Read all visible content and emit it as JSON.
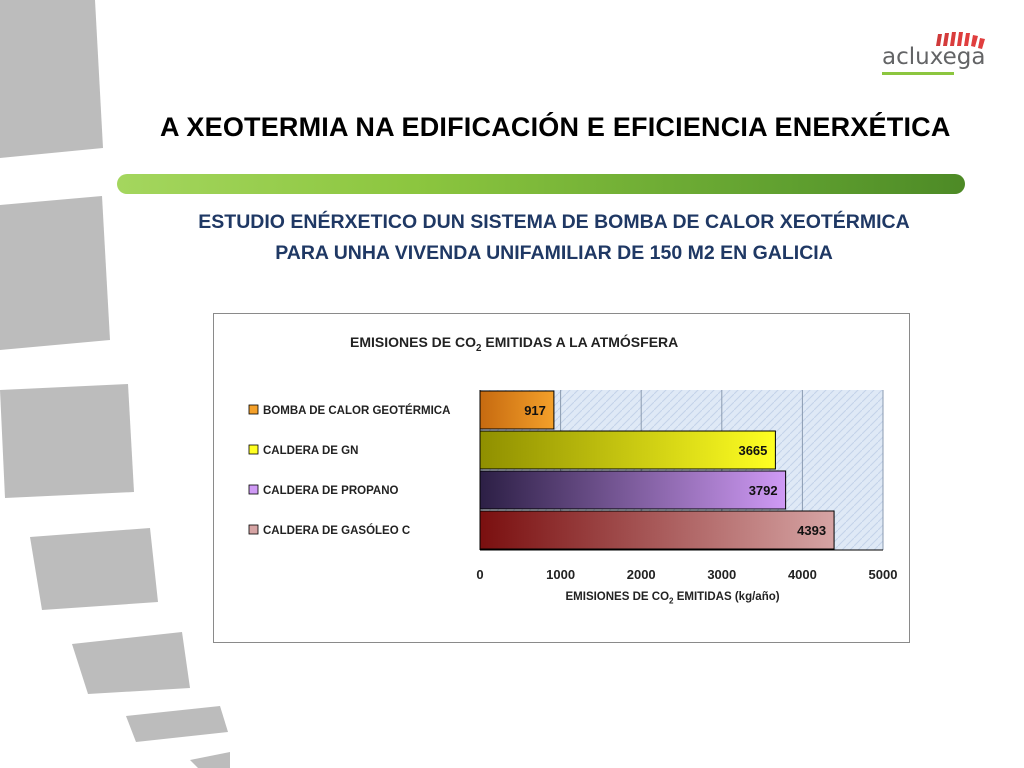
{
  "logo": {
    "text": "acluxega"
  },
  "header": {
    "title": "A XEOTERMIA NA EDIFICACIÓN E EFICIENCIA ENERXÉTICA",
    "subtitle_line1": "ESTUDIO ENÉRXETICO DUN SISTEMA DE BOMBA DE CALOR XEOTÉRMICA",
    "subtitle_line2": "PARA UNHA VIVENDA UNIFAMILIAR DE 150 M2 EN GALICIA"
  },
  "chart_data": {
    "type": "bar",
    "orientation": "horizontal",
    "title_prefix": "EMISIONES DE CO",
    "title_sub": "2",
    "title_suffix": " EMITIDAS A LA ATMÓSFERA",
    "xlabel_prefix": "EMISIONES DE CO",
    "xlabel_sub": "2",
    "xlabel_suffix": " EMITIDAS (kg/año)",
    "categories": [
      "BOMBA DE CALOR GEOTÉRMICA",
      "CALDERA DE GN",
      "CALDERA DE PROPANO",
      "CALDERA DE GASÓLEO C"
    ],
    "values": [
      917,
      3665,
      3792,
      4393
    ],
    "data_labels": [
      "917",
      "3665",
      "3792",
      "4393"
    ],
    "xlim": [
      0,
      5000
    ],
    "xticks": [
      0,
      1000,
      2000,
      3000,
      4000,
      5000
    ],
    "colors": [
      [
        "#f4a02a",
        "#c66a10"
      ],
      [
        "#ffff22",
        "#8f8f00"
      ],
      [
        "#cf9af5",
        "#2c1f45"
      ],
      [
        "#d6a4a4",
        "#7a0f0f"
      ]
    ],
    "grid": true,
    "legend": "left"
  }
}
